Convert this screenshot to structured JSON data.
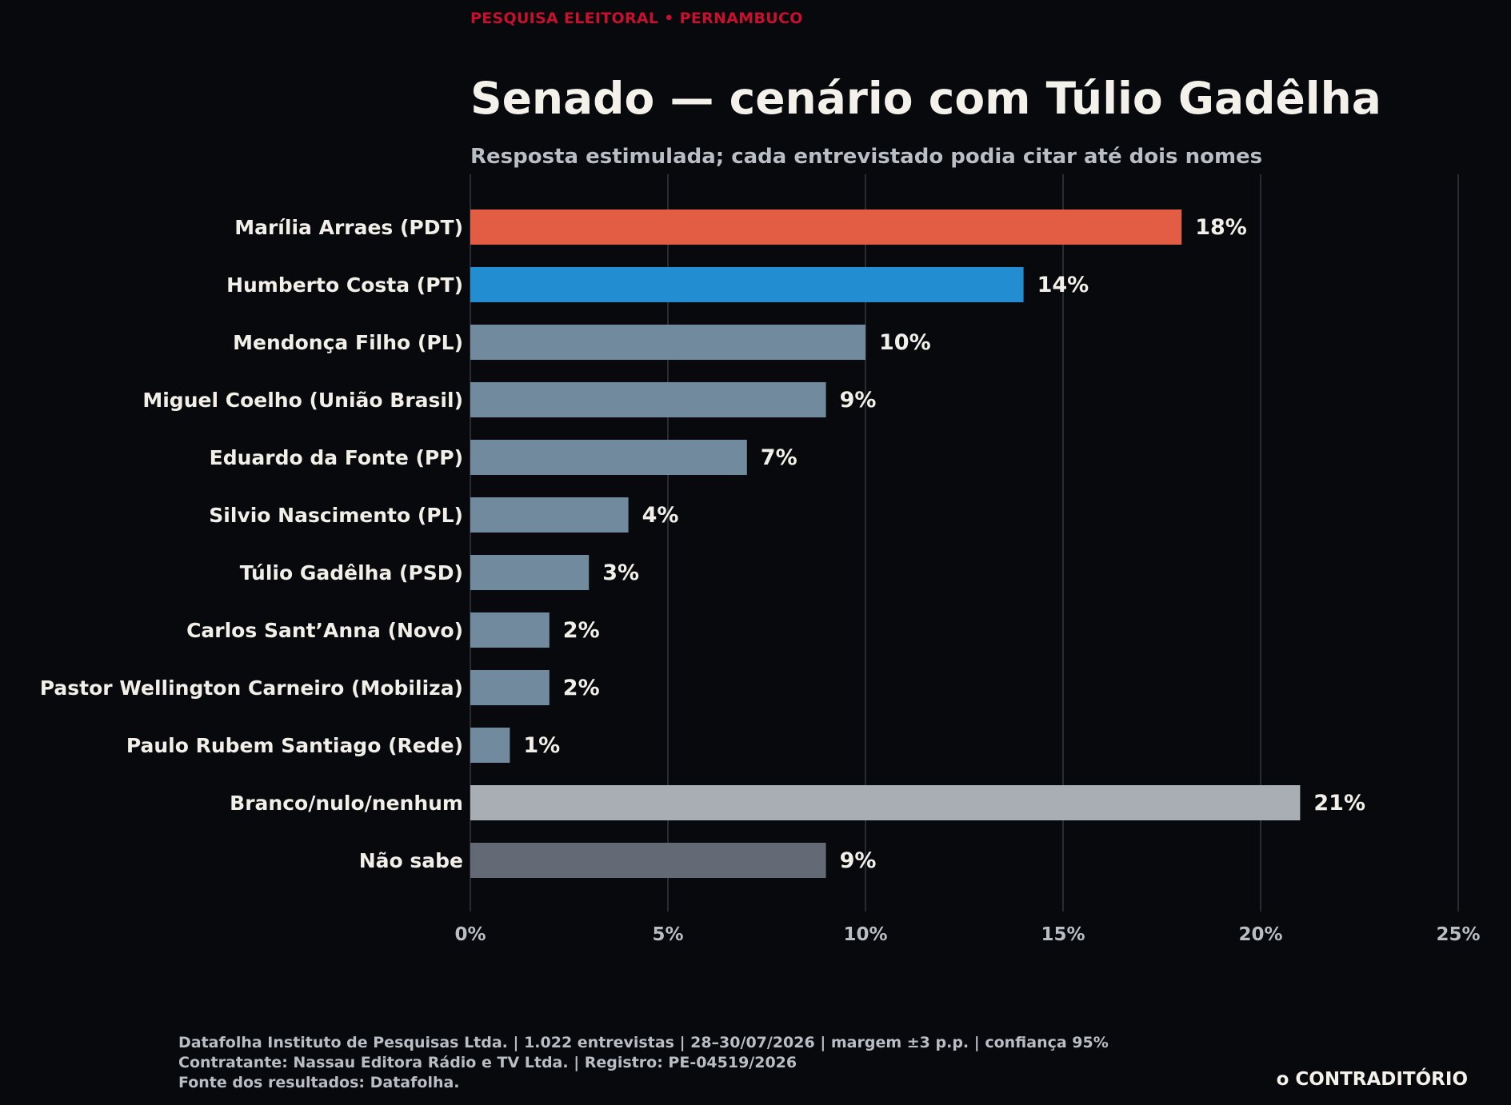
{
  "header": {
    "kicker": "PESQUISA ELEITORAL • PERNAMBUCO",
    "title": "Senado — cenário com Túlio Gadêlha",
    "subtitle": "Resposta estimulada; cada entrevistado podia citar até dois nomes"
  },
  "chart_data": {
    "type": "bar",
    "orientation": "horizontal",
    "title": "Senado — cenário com Túlio Gadêlha",
    "subtitle": "Resposta estimulada; cada entrevistado podia citar até dois nomes",
    "categories": [
      "Marília Arraes (PDT)",
      "Humberto Costa (PT)",
      "Mendonça Filho (PL)",
      "Miguel Coelho (União Brasil)",
      "Eduardo da Fonte (PP)",
      "Silvio Nascimento (PL)",
      "Túlio Gadêlha (PSD)",
      "Carlos Sant’Anna (Novo)",
      "Pastor Wellington Carneiro (Mobiliza)",
      "Paulo Rubem Santiago (Rede)",
      "Branco/nulo/nenhum",
      "Não sabe"
    ],
    "values": [
      18,
      14,
      10,
      9,
      7,
      4,
      3,
      2,
      2,
      1,
      21,
      9
    ],
    "value_labels": [
      "18%",
      "14%",
      "10%",
      "9%",
      "7%",
      "4%",
      "3%",
      "2%",
      "2%",
      "1%",
      "21%",
      "9%"
    ],
    "colors": [
      "#e25d44",
      "#238dd2",
      "#728a9d",
      "#728a9d",
      "#728a9d",
      "#728a9d",
      "#728a9d",
      "#728a9d",
      "#728a9d",
      "#728a9d",
      "#a9aeb5",
      "#646a75"
    ],
    "xlim": [
      0,
      25
    ],
    "xticks": [
      0,
      5,
      10,
      15,
      20,
      25
    ],
    "xtick_labels": [
      "0%",
      "5%",
      "10%",
      "15%",
      "20%",
      "25%"
    ],
    "grid": "vertical",
    "xlabel": "",
    "ylabel": ""
  },
  "footer": {
    "lines": [
      "Datafolha Instituto de Pesquisas Ltda. | 1.022 entrevistas | 28–30/07/2026 | margem ±3 p.p. | confiança 95%",
      "Contratante: Nassau Editora Rádio e TV Ltda. | Registro: PE-04519/2026",
      "Fonte dos resultados: Datafolha."
    ],
    "brand": "o CONTRADITÓRIO"
  }
}
